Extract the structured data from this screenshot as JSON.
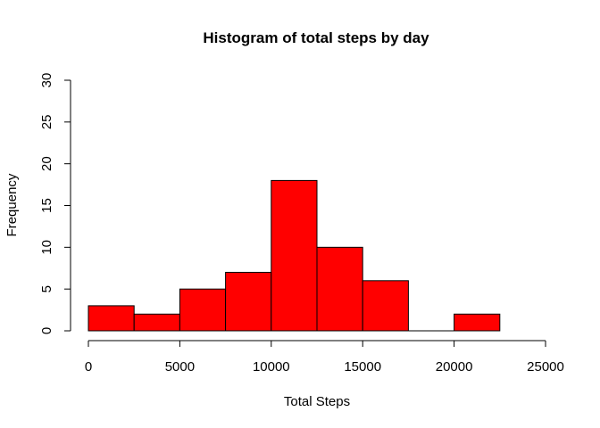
{
  "chart_data": {
    "type": "bar",
    "title": "Histogram of total steps by day",
    "xlabel": "Total Steps",
    "ylabel": "Frequency",
    "bin_edges": [
      0,
      2500,
      5000,
      7500,
      10000,
      12500,
      15000,
      17500,
      20000,
      22500
    ],
    "values": [
      3,
      2,
      5,
      7,
      18,
      10,
      6,
      0,
      2
    ],
    "xlim": [
      0,
      25000
    ],
    "ylim": [
      0,
      30
    ],
    "x_ticks": [
      0,
      5000,
      10000,
      15000,
      20000,
      25000
    ],
    "y_ticks": [
      0,
      5,
      10,
      15,
      20,
      25,
      30
    ],
    "bar_color": "#ff0000",
    "grid": false,
    "legend": "none"
  }
}
